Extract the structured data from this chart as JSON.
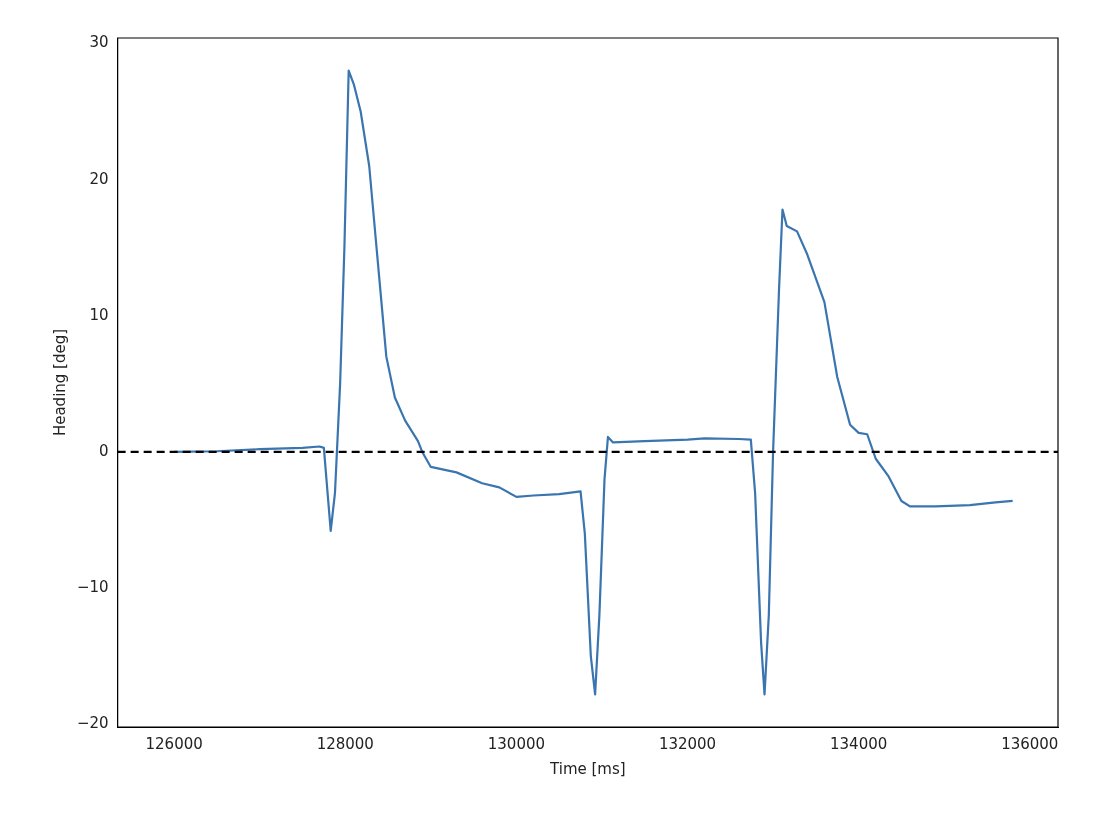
{
  "chart_data": {
    "type": "line",
    "xlabel": "Time [ms]",
    "ylabel": "Heading [deg]",
    "xlim": [
      125340,
      136330
    ],
    "ylim": [
      -20.2,
      30.4
    ],
    "xticks": [
      126000,
      128000,
      130000,
      132000,
      134000,
      136000
    ],
    "yticks": [
      -20,
      -10,
      0,
      10,
      20,
      30
    ],
    "grid": false,
    "marker": "none",
    "line_style": "solid",
    "ref_lines": [
      {
        "axis": "y",
        "value": 0,
        "color": "#000000",
        "line_style": "dashed"
      }
    ],
    "series": [
      {
        "color": "#3a75b0",
        "x": [
          126000,
          126500,
          127000,
          127500,
          127700,
          127750,
          127830,
          127880,
          127940,
          127990,
          128040,
          128100,
          128180,
          128280,
          128380,
          128480,
          128580,
          128700,
          128850,
          128900,
          129000,
          129300,
          129600,
          129800,
          130000,
          130200,
          130500,
          130750,
          130800,
          130870,
          130920,
          130970,
          131030,
          131070,
          131130,
          131500,
          132000,
          132200,
          132600,
          132740,
          132790,
          132860,
          132900,
          132950,
          133000,
          133070,
          133110,
          133160,
          133280,
          133400,
          133600,
          133750,
          133900,
          134000,
          134100,
          134200,
          134350,
          134500,
          134600,
          134900,
          135300,
          135600,
          135800
        ],
        "values": [
          0,
          0.05,
          0.2,
          0.3,
          0.4,
          0.3,
          -5.8,
          -3,
          5,
          15,
          28,
          27,
          25,
          21,
          14,
          7,
          4,
          2.3,
          0.8,
          0,
          -1.1,
          -1.5,
          -2.3,
          -2.6,
          -3.3,
          -3.2,
          -3.1,
          -2.9,
          -6,
          -15,
          -17.8,
          -12,
          -2,
          1.1,
          0.7,
          0.8,
          0.9,
          1,
          0.95,
          0.9,
          -3,
          -14,
          -17.8,
          -12,
          0,
          12,
          17.8,
          16.6,
          16.2,
          14.5,
          11,
          5.5,
          2,
          1.4,
          1.3,
          -0.5,
          -1.8,
          -3.6,
          -4,
          -4,
          -3.9,
          -3.7,
          -3.6
        ]
      }
    ]
  }
}
